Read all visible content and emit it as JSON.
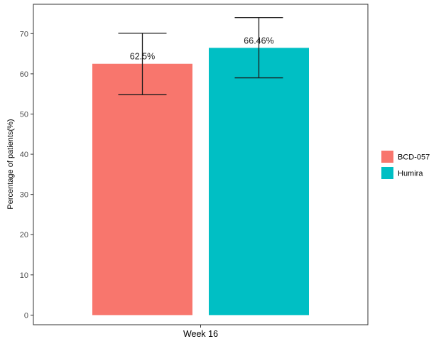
{
  "chart_data": {
    "type": "bar",
    "categories": [
      "Week 16"
    ],
    "series": [
      {
        "name": "BCD-057",
        "values": [
          62.5
        ],
        "error_low": [
          54.8
        ],
        "error_high": [
          70.1
        ],
        "label": "62.5%",
        "color": "#F8766D"
      },
      {
        "name": "Humira",
        "values": [
          66.46
        ],
        "error_low": [
          59.0
        ],
        "error_high": [
          74.0
        ],
        "label": "66.46%",
        "color": "#00BFC4"
      }
    ],
    "title": "",
    "xlabel": "",
    "ylabel": "Percentage of patients(%)",
    "ylim": [
      -2.4,
      77.3
    ],
    "yticks": [
      0,
      10,
      20,
      30,
      40,
      50,
      60,
      70
    ],
    "grid": false,
    "legend_position": "right"
  }
}
